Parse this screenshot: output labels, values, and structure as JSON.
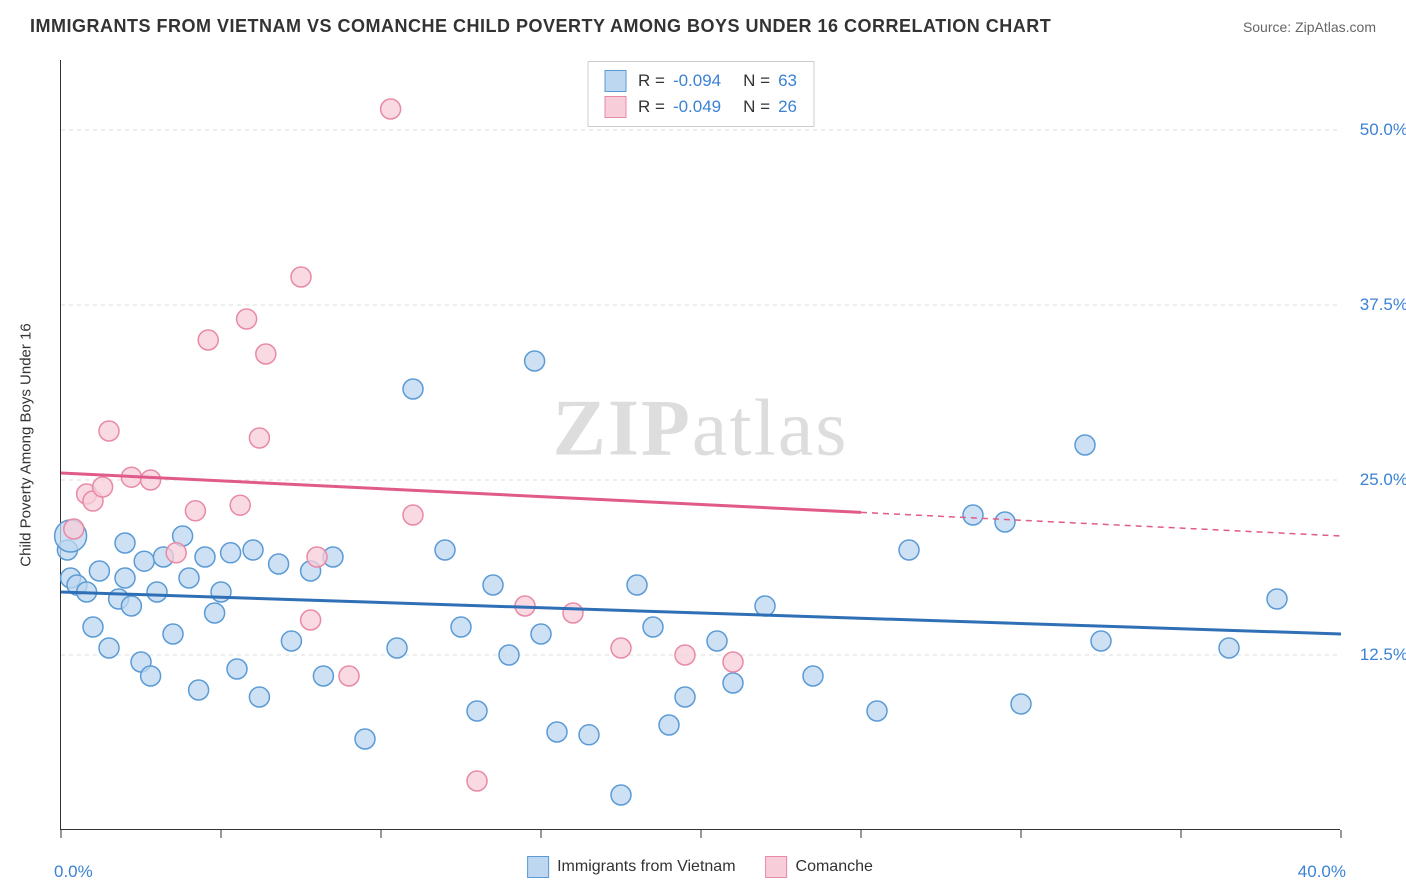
{
  "title": "IMMIGRANTS FROM VIETNAM VS COMANCHE CHILD POVERTY AMONG BOYS UNDER 16 CORRELATION CHART",
  "source": "Source: ZipAtlas.com",
  "watermark_a": "ZIP",
  "watermark_b": "atlas",
  "y_axis_label": "Child Poverty Among Boys Under 16",
  "chart": {
    "type": "scatter",
    "x_min": 0.0,
    "x_max": 40.0,
    "y_min": 0.0,
    "y_max": 55.0,
    "x_min_label": "0.0%",
    "x_max_label": "40.0%",
    "x_ticks": [
      0,
      5,
      10,
      15,
      20,
      25,
      30,
      35,
      40
    ],
    "y_ticks": [
      {
        "v": 12.5,
        "label": "12.5%"
      },
      {
        "v": 25.0,
        "label": "25.0%"
      },
      {
        "v": 37.5,
        "label": "37.5%"
      },
      {
        "v": 50.0,
        "label": "50.0%"
      }
    ],
    "grid_color": "#dddddd",
    "background_color": "#ffffff",
    "point_radius": 10,
    "series": [
      {
        "name": "Immigrants from Vietnam",
        "fill": "#bdd7f0",
        "stroke": "#5b9bd5",
        "line_color": "#2f6fb5",
        "line_width": 3,
        "R": "-0.094",
        "N": "63",
        "trend": {
          "x1": 0,
          "y1": 17.0,
          "x2": 40,
          "y2": 14.0,
          "solid_until_x": 40
        },
        "points": [
          [
            0.2,
            20.0
          ],
          [
            0.3,
            18.0
          ],
          [
            0.3,
            21.0,
            16
          ],
          [
            0.5,
            17.5
          ],
          [
            0.8,
            17.0
          ],
          [
            1.0,
            14.5
          ],
          [
            1.2,
            18.5
          ],
          [
            1.5,
            13.0
          ],
          [
            1.8,
            16.5
          ],
          [
            2.0,
            20.5
          ],
          [
            2.0,
            18.0
          ],
          [
            2.2,
            16.0
          ],
          [
            2.5,
            12.0
          ],
          [
            2.6,
            19.2
          ],
          [
            2.8,
            11.0
          ],
          [
            3.0,
            17.0
          ],
          [
            3.2,
            19.5
          ],
          [
            3.5,
            14.0
          ],
          [
            3.8,
            21.0
          ],
          [
            4.0,
            18.0
          ],
          [
            4.3,
            10.0
          ],
          [
            4.5,
            19.5
          ],
          [
            4.8,
            15.5
          ],
          [
            5.0,
            17.0
          ],
          [
            5.3,
            19.8
          ],
          [
            5.5,
            11.5
          ],
          [
            6.0,
            20.0
          ],
          [
            6.2,
            9.5
          ],
          [
            6.8,
            19.0
          ],
          [
            7.2,
            13.5
          ],
          [
            7.8,
            18.5
          ],
          [
            8.2,
            11.0
          ],
          [
            8.5,
            19.5
          ],
          [
            9.5,
            6.5
          ],
          [
            10.5,
            13.0
          ],
          [
            11.0,
            31.5
          ],
          [
            12.0,
            20.0
          ],
          [
            12.5,
            14.5
          ],
          [
            13.0,
            8.5
          ],
          [
            13.5,
            17.5
          ],
          [
            14.0,
            12.5
          ],
          [
            14.8,
            33.5
          ],
          [
            15.0,
            14.0
          ],
          [
            15.5,
            7.0
          ],
          [
            16.5,
            6.8
          ],
          [
            17.5,
            2.5
          ],
          [
            18.0,
            17.5
          ],
          [
            18.5,
            14.5
          ],
          [
            19.0,
            7.5
          ],
          [
            19.5,
            9.5
          ],
          [
            20.5,
            13.5
          ],
          [
            21.0,
            10.5
          ],
          [
            22.0,
            16.0
          ],
          [
            23.5,
            11.0
          ],
          [
            25.5,
            8.5
          ],
          [
            26.5,
            20.0
          ],
          [
            28.5,
            22.5
          ],
          [
            29.5,
            22.0
          ],
          [
            30.0,
            9.0
          ],
          [
            32.0,
            27.5
          ],
          [
            32.5,
            13.5
          ],
          [
            36.5,
            13.0
          ],
          [
            38.0,
            16.5
          ]
        ]
      },
      {
        "name": "Comanche",
        "fill": "#f7cdd9",
        "stroke": "#e88aa5",
        "line_color": "#e05a8a",
        "line_width": 3,
        "R": "-0.049",
        "N": "26",
        "trend": {
          "x1": 0,
          "y1": 25.5,
          "x2": 40,
          "y2": 21.0,
          "solid_until_x": 25
        },
        "points": [
          [
            0.4,
            21.5
          ],
          [
            0.8,
            24.0
          ],
          [
            1.0,
            23.5
          ],
          [
            1.3,
            24.5
          ],
          [
            1.5,
            28.5
          ],
          [
            2.2,
            25.2
          ],
          [
            2.8,
            25.0
          ],
          [
            3.6,
            19.8
          ],
          [
            4.2,
            22.8
          ],
          [
            4.6,
            35.0
          ],
          [
            5.6,
            23.2
          ],
          [
            5.8,
            36.5
          ],
          [
            6.4,
            34.0
          ],
          [
            6.2,
            28.0
          ],
          [
            7.5,
            39.5
          ],
          [
            7.8,
            15.0
          ],
          [
            8.0,
            19.5
          ],
          [
            9.0,
            11.0
          ],
          [
            11.0,
            22.5
          ],
          [
            10.3,
            51.5
          ],
          [
            13.0,
            3.5
          ],
          [
            14.5,
            16.0
          ],
          [
            16.0,
            15.5
          ],
          [
            17.5,
            13.0
          ],
          [
            19.5,
            12.5
          ],
          [
            21.0,
            12.0
          ]
        ]
      }
    ]
  },
  "stats_legend": {
    "r_label": "R =",
    "n_label": "N ="
  }
}
